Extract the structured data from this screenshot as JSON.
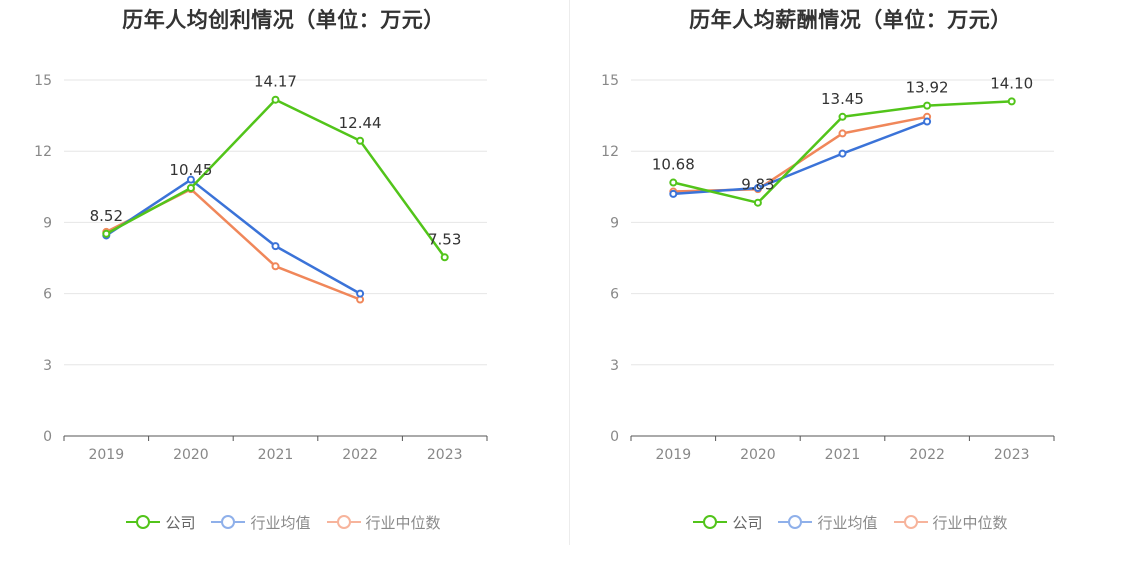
{
  "colors": {
    "company": "#52c41a",
    "industry_avg": "#3b73d8",
    "industry_median": "#f0875a",
    "legend_avg": "#8fb0ea",
    "legend_median": "#f7b49c",
    "axis": "#555555",
    "grid": "#e6e6e6",
    "tick_text": "#888888",
    "label_text": "#333333"
  },
  "legend": {
    "company": "公司",
    "industry_avg": "行业均值",
    "industry_median": "行业中位数"
  },
  "chart_data": [
    {
      "type": "line",
      "title": "历年人均创利情况（单位：万元）",
      "categories": [
        "2019",
        "2020",
        "2021",
        "2022",
        "2023"
      ],
      "ylim": [
        0,
        15
      ],
      "yticks": [
        0,
        3,
        6,
        9,
        12,
        15
      ],
      "grid": true,
      "legend_position": "bottom",
      "series": [
        {
          "name": "公司",
          "values": [
            8.52,
            10.45,
            14.17,
            12.44,
            7.53
          ],
          "labels": [
            "8.52",
            "10.45",
            "14.17",
            "12.44",
            "7.53"
          ]
        },
        {
          "name": "行业均值",
          "values": [
            8.45,
            10.8,
            8.0,
            6.0,
            null
          ]
        },
        {
          "name": "行业中位数",
          "values": [
            8.6,
            10.4,
            7.15,
            5.75,
            null
          ]
        }
      ]
    },
    {
      "type": "line",
      "title": "历年人均薪酬情况（单位：万元）",
      "categories": [
        "2019",
        "2020",
        "2021",
        "2022",
        "2023"
      ],
      "ylim": [
        0,
        15
      ],
      "yticks": [
        0,
        3,
        6,
        9,
        12,
        15
      ],
      "grid": true,
      "legend_position": "bottom",
      "series": [
        {
          "name": "公司",
          "values": [
            10.68,
            9.83,
            13.45,
            13.92,
            14.1
          ],
          "labels": [
            "10.68",
            "9.83",
            "13.45",
            "13.92",
            "14.10"
          ]
        },
        {
          "name": "行业均值",
          "values": [
            10.2,
            10.45,
            11.9,
            13.25,
            null
          ]
        },
        {
          "name": "行业中位数",
          "values": [
            10.3,
            10.4,
            12.75,
            13.45,
            null
          ]
        }
      ]
    }
  ]
}
